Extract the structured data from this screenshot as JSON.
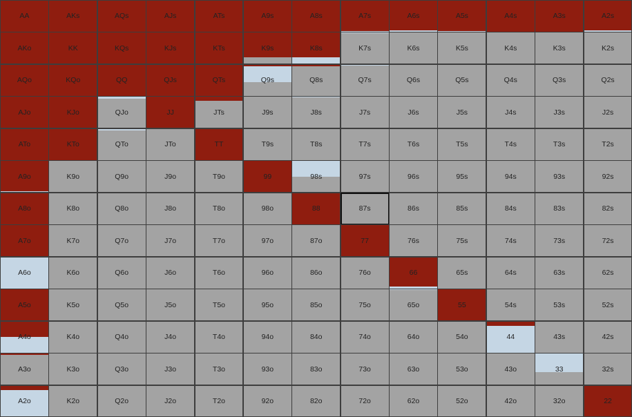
{
  "colors": {
    "raise": "#8f1d0f",
    "call": "#c5d6e4",
    "fold": "#a3a3a3"
  },
  "grid": {
    "rows": [
      [
        "AA",
        "AKs",
        "AQs",
        "AJs",
        "ATs",
        "A9s",
        "A8s",
        "A7s",
        "A6s",
        "A5s",
        "A4s",
        "A3s",
        "A2s"
      ],
      [
        "AKo",
        "KK",
        "KQs",
        "KJs",
        "KTs",
        "K9s",
        "K8s",
        "K7s",
        "K6s",
        "K5s",
        "K4s",
        "K3s",
        "K2s"
      ],
      [
        "AQo",
        "KQo",
        "QQ",
        "QJs",
        "QTs",
        "Q9s",
        "Q8s",
        "Q7s",
        "Q6s",
        "Q5s",
        "Q4s",
        "Q3s",
        "Q2s"
      ],
      [
        "AJo",
        "KJo",
        "QJo",
        "JJ",
        "JTs",
        "J9s",
        "J8s",
        "J7s",
        "J6s",
        "J5s",
        "J4s",
        "J3s",
        "J2s"
      ],
      [
        "ATo",
        "KTo",
        "QTo",
        "JTo",
        "TT",
        "T9s",
        "T8s",
        "T7s",
        "T6s",
        "T5s",
        "T4s",
        "T3s",
        "T2s"
      ],
      [
        "A9o",
        "K9o",
        "Q9o",
        "J9o",
        "T9o",
        "99",
        "98s",
        "97s",
        "96s",
        "95s",
        "94s",
        "93s",
        "92s"
      ],
      [
        "A8o",
        "K8o",
        "Q8o",
        "J8o",
        "T8o",
        "98o",
        "88",
        "87s",
        "86s",
        "85s",
        "84s",
        "83s",
        "82s"
      ],
      [
        "A7o",
        "K7o",
        "Q7o",
        "J7o",
        "T7o",
        "97o",
        "87o",
        "77",
        "76s",
        "75s",
        "74s",
        "73s",
        "72s"
      ],
      [
        "A6o",
        "K6o",
        "Q6o",
        "J6o",
        "T6o",
        "96o",
        "86o",
        "76o",
        "66",
        "65s",
        "64s",
        "63s",
        "62s"
      ],
      [
        "A5o",
        "K5o",
        "Q5o",
        "J5o",
        "T5o",
        "95o",
        "85o",
        "75o",
        "65o",
        "55",
        "54s",
        "53s",
        "52s"
      ],
      [
        "A4o",
        "K4o",
        "Q4o",
        "J4o",
        "T4o",
        "94o",
        "84o",
        "74o",
        "64o",
        "54o",
        "44",
        "43s",
        "42s"
      ],
      [
        "A3o",
        "K3o",
        "Q3o",
        "J3o",
        "T3o",
        "93o",
        "83o",
        "73o",
        "63o",
        "53o",
        "43o",
        "33",
        "32s"
      ],
      [
        "A2o",
        "K2o",
        "Q2o",
        "J2o",
        "T2o",
        "92o",
        "82o",
        "72o",
        "62o",
        "52o",
        "42o",
        "32o",
        "22"
      ]
    ],
    "mixed": {
      "A7s": [
        0.98,
        0.02,
        0
      ],
      "A6s": [
        0.95,
        0.05,
        0
      ],
      "A5s": [
        0.98,
        0.02,
        0
      ],
      "A4s": [
        0.99,
        0.01,
        0
      ],
      "A3s": [
        0.99,
        0.01,
        0
      ],
      "A2s": [
        0.95,
        0.05,
        0
      ],
      "K9s": [
        0.78,
        0,
        0.22
      ],
      "K8s": [
        0.78,
        0.22,
        0
      ],
      "K7s": [
        0,
        0.02,
        0.98
      ],
      "Q9s": [
        0.05,
        0.5,
        0.45
      ],
      "Q8s": [
        0.05,
        0,
        0.95
      ],
      "Q7s": [
        0,
        0.02,
        0.98
      ],
      "QJo": [
        0,
        0.05,
        0.95
      ],
      "JTs": [
        0.12,
        0,
        0.88
      ],
      "J8s": [
        0,
        0.02,
        0.98
      ],
      "QTo": [
        0,
        0.05,
        0.95
      ],
      "98s": [
        0,
        0.5,
        0.5
      ],
      "A9o": [
        0.98,
        0.02,
        0
      ],
      "A6o": [
        0,
        1,
        0
      ],
      "66": [
        0.95,
        0.05,
        0
      ],
      "65o": [
        0,
        0.02,
        0.98
      ],
      "44": [
        0.15,
        0.85,
        0
      ],
      "A4o": [
        0.5,
        0.5,
        0
      ],
      "A3o": [
        0.05,
        0,
        0.95
      ],
      "33": [
        0,
        0.6,
        0.4
      ],
      "A2o": [
        0.15,
        0.85,
        0
      ]
    },
    "selected": "87s"
  }
}
